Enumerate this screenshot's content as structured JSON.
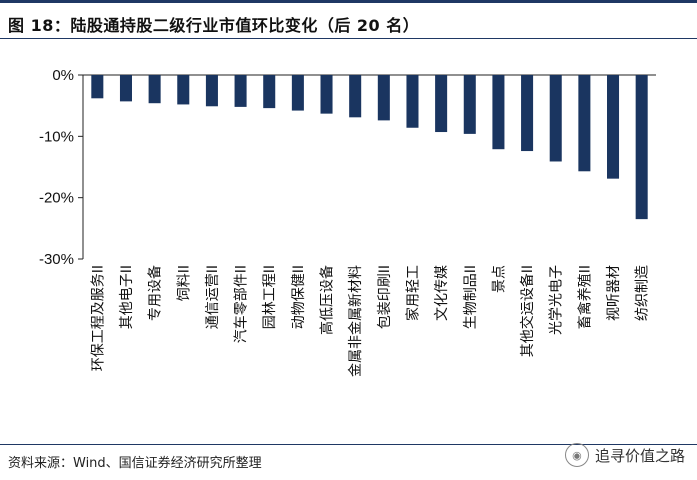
{
  "header": {
    "title": "图 18：陆股通持股二级行业市值环比变化（后 20 名）"
  },
  "footer": {
    "source": "资料来源：Wind、国信证券经济研究所整理"
  },
  "watermark": {
    "text": "追寻价值之路"
  },
  "colors": {
    "bar": "#1a3560",
    "axis": "#222222"
  },
  "chart_data": {
    "type": "bar",
    "title": "",
    "xlabel": "",
    "ylabel": "",
    "ylim": [
      -30,
      0
    ],
    "yticks": [
      "0%",
      "-10%",
      "-20%",
      "-30%"
    ],
    "ytick_values": [
      0,
      -10,
      -20,
      -30
    ],
    "categories": [
      "环保工程及服务II",
      "其他电子II",
      "专用设备",
      "饲料II",
      "通信运营II",
      "汽车零部件II",
      "园林工程II",
      "动物保健II",
      "高低压设备",
      "金属非金属新材料",
      "包装印刷II",
      "家用轻工",
      "文化传媒",
      "生物制品II",
      "景点",
      "其他交运设备II",
      "光学光电子",
      "畜禽养殖II",
      "视听器材",
      "纺织制造"
    ],
    "values": [
      -3.8,
      -4.3,
      -4.6,
      -4.8,
      -5.1,
      -5.2,
      -5.4,
      -5.8,
      -6.3,
      -6.9,
      -7.4,
      -8.6,
      -9.3,
      -9.6,
      -12.1,
      -12.4,
      -14.1,
      -15.7,
      -16.9,
      -23.5
    ]
  }
}
